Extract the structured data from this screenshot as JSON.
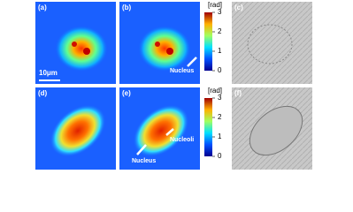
{
  "panels": [
    {
      "label": "(a)"
    },
    {
      "label": "(b)"
    },
    {
      "label": "(c)"
    },
    {
      "label": "(d)"
    },
    {
      "label": "(e)"
    },
    {
      "label": "(f)"
    }
  ],
  "scale_bar": "10μm",
  "annotations": {
    "b": [
      "Nucleus"
    ],
    "e": [
      "Nucleus",
      "Nucleoli"
    ]
  },
  "colorbars": [
    {
      "unit": "[rad]",
      "range": [
        0,
        3
      ],
      "ticks": [
        0,
        1,
        2,
        3
      ]
    },
    {
      "unit": "[rad]",
      "range": [
        0,
        3
      ],
      "ticks": [
        0,
        1,
        2,
        3
      ]
    }
  ]
}
